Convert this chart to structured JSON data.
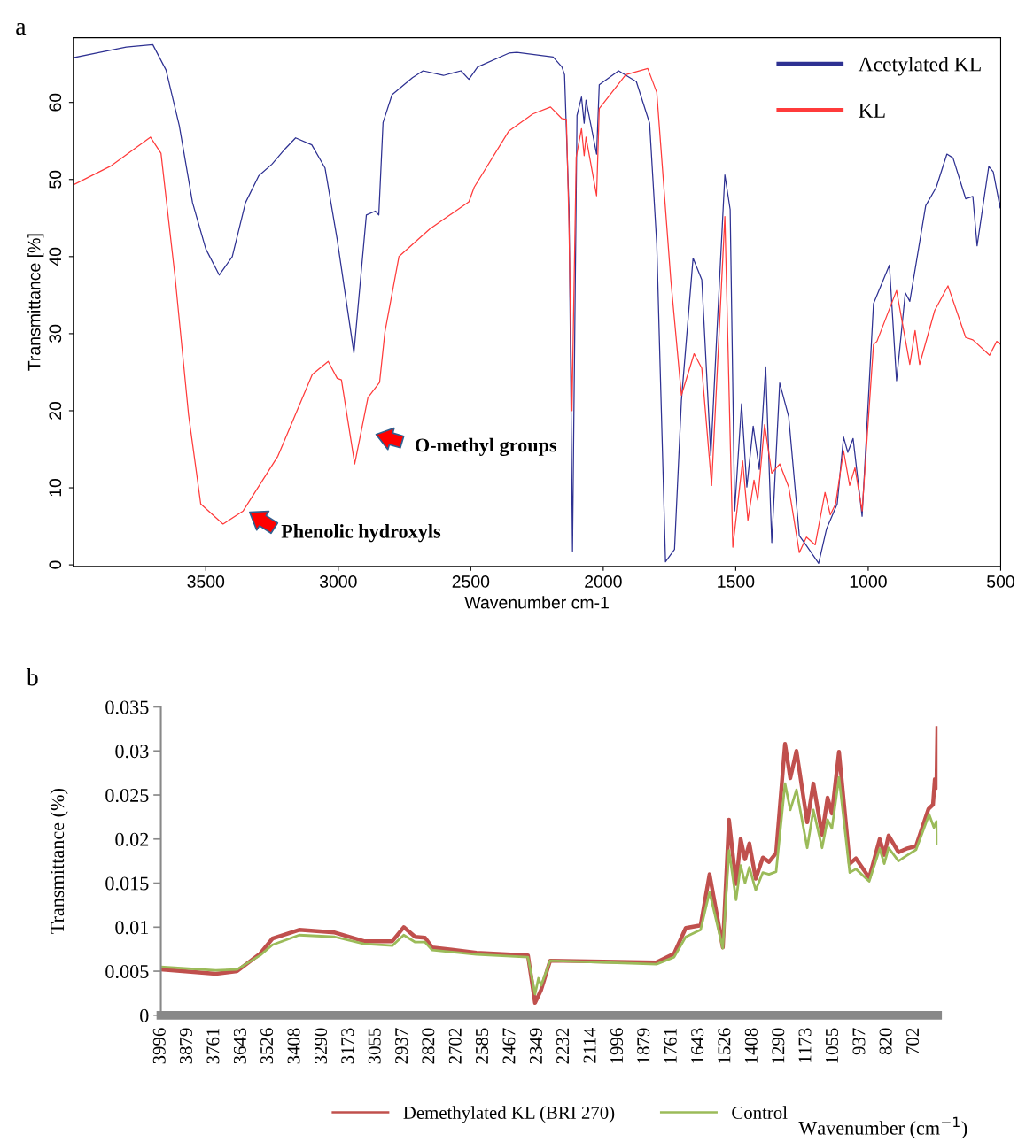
{
  "chart_data": [
    {
      "type": "line",
      "title": "a",
      "xlabel": "Wavenumber cm-1",
      "ylabel": "Transmittance [%]",
      "xlim": [
        4000,
        500
      ],
      "xticks": [
        3500,
        3000,
        2500,
        2000,
        1500,
        1000,
        500
      ],
      "ylim": [
        -0.2,
        68.4
      ],
      "yticks": [
        0,
        10,
        20,
        30,
        40,
        50,
        60
      ],
      "grid": false,
      "legend": "top right",
      "line_style": "solid",
      "annotations": [
        "O-methyl groups",
        "Phenolic hydroxyls"
      ],
      "series": [
        {
          "name": "Acetylated KL",
          "color": "#2e3192",
          "x": [
            4000,
            3900,
            3800,
            3700,
            3650,
            3600,
            3550,
            3500,
            3449,
            3400,
            3350,
            3300,
            3250,
            3200,
            3161,
            3100,
            3050,
            3004,
            2941,
            2894,
            2860,
            2847,
            2831,
            2797,
            2720,
            2680,
            2603,
            2537,
            2507,
            2474,
            2356,
            2326,
            2189,
            2156,
            2146,
            2129,
            2116,
            2099,
            2082,
            2072,
            2065,
            2025,
            2015,
            1942,
            1875,
            1825,
            1798,
            1765,
            1731,
            1705,
            1661,
            1628,
            1594,
            1574,
            1541,
            1521,
            1504,
            1478,
            1458,
            1434,
            1411,
            1387,
            1364,
            1334,
            1300,
            1260,
            1233,
            1187,
            1157,
            1117,
            1093,
            1077,
            1057,
            1023,
            980,
            920,
            893,
            860,
            843,
            783,
            743,
            703,
            680,
            632,
            605,
            589,
            545,
            528,
            502,
            500
          ],
          "values": [
            65.8,
            66.5,
            67.2,
            67.5,
            64.2,
            57,
            47,
            41,
            37.6,
            40,
            47,
            50.5,
            52,
            54,
            55.4,
            54.5,
            51.5,
            42.2,
            27.5,
            45.4,
            45.9,
            45.4,
            57.4,
            61,
            63.2,
            64.1,
            63.5,
            64.1,
            63,
            64.6,
            66.4,
            66.5,
            65.9,
            64.6,
            63.6,
            46,
            1.8,
            58.3,
            60.7,
            57.3,
            60.3,
            53.3,
            62.3,
            64.1,
            62.7,
            57.3,
            41.6,
            0.4,
            2,
            21.3,
            39.8,
            37,
            14.2,
            28.1,
            50.6,
            46.1,
            7,
            20.9,
            10.1,
            18,
            12.4,
            25.7,
            2.9,
            23.6,
            19.2,
            3.8,
            2.5,
            0.2,
            4.7,
            7.9,
            16.6,
            14.6,
            16.4,
            6.3,
            33.9,
            38.9,
            23.9,
            35.3,
            34.2,
            46.6,
            49,
            53.3,
            52.8,
            47.5,
            47.8,
            41.4,
            51.7,
            51,
            46.3,
            48
          ]
        },
        {
          "name": "KL",
          "color": "#ff3b3b",
          "x": [
            4000,
            3856,
            3709,
            3669,
            3616,
            3565,
            3519,
            3435,
            3359,
            3228,
            3098,
            3038,
            3004,
            2988,
            2938,
            2888,
            2844,
            2824,
            2771,
            2654,
            2507,
            2487,
            2356,
            2266,
            2199,
            2156,
            2139,
            2129,
            2118,
            2102,
            2082,
            2072,
            2065,
            2025,
            2015,
            1915,
            1832,
            1798,
            1745,
            1705,
            1657,
            1628,
            1591,
            1541,
            1511,
            1474,
            1454,
            1431,
            1417,
            1391,
            1364,
            1334,
            1300,
            1260,
            1233,
            1200,
            1163,
            1143,
            1123,
            1093,
            1070,
            1050,
            1023,
            980,
            967,
            893,
            843,
            823,
            806,
            749,
            699,
            632,
            605,
            542,
            515,
            500
          ],
          "values": [
            49.3,
            51.8,
            55.5,
            53.4,
            37.4,
            19.5,
            7.9,
            5.3,
            7,
            14.1,
            24.7,
            26.4,
            24.2,
            24,
            13.1,
            21.7,
            23.7,
            30.2,
            40,
            43.6,
            47.1,
            49,
            56.3,
            58.5,
            59.4,
            57.9,
            57.8,
            43.8,
            20,
            52.9,
            56.6,
            53.1,
            55.5,
            47.9,
            59.2,
            63.6,
            64.4,
            61.3,
            37,
            22,
            27.4,
            25.5,
            10.3,
            45.2,
            2.3,
            13.5,
            5.8,
            11,
            8.4,
            18.2,
            11.9,
            13.1,
            10.1,
            1.6,
            3.6,
            2.6,
            9.4,
            6.5,
            7.9,
            14.8,
            10.3,
            12.6,
            7,
            28.6,
            29,
            35.6,
            26,
            30.4,
            26,
            33,
            36.2,
            29.5,
            29.2,
            27.2,
            29,
            28.6
          ]
        }
      ]
    },
    {
      "type": "line",
      "title": "b",
      "xlabel": "Wavenumber (cm$^{−1}$)",
      "ylabel": "Transmittance (%)",
      "xlim": [
        3996,
        600
      ],
      "xticks": [
        3996,
        3879,
        3761,
        3643,
        3526,
        3408,
        3290,
        3173,
        3055,
        2937,
        2820,
        2702,
        2585,
        2467,
        2349,
        2232,
        2114,
        1996,
        1879,
        1761,
        1643,
        1526,
        1408,
        1290,
        1173,
        1055,
        937,
        820,
        702
      ],
      "ylim": [
        0,
        0.035
      ],
      "yticks": [
        0,
        0.005,
        0.01,
        0.015,
        0.02,
        0.025,
        0.03,
        0.035
      ],
      "grid": false,
      "legend": "bottom",
      "line_style": "solid",
      "series": [
        {
          "name": "Demethylated KL (BRI 270)",
          "color": "#c0504d",
          "x": [
            3996,
            3756,
            3663,
            3562,
            3508,
            3391,
            3236,
            3108,
            2984,
            2934,
            2884,
            2841,
            2810,
            2616,
            2391,
            2360,
            2333,
            2294,
            1829,
            1752,
            1701,
            1636,
            1597,
            1539,
            1512,
            1481,
            1461,
            1442,
            1423,
            1395,
            1364,
            1337,
            1306,
            1267,
            1244,
            1217,
            1170,
            1143,
            1105,
            1081,
            1062,
            1031,
            984,
            957,
            899,
            853,
            833,
            814,
            771,
            736,
            694,
            640,
            620,
            612,
            605,
            601
          ],
          "values": [
            0.0052,
            0.0047,
            0.005,
            0.007,
            0.0087,
            0.0097,
            0.0094,
            0.0084,
            0.0084,
            0.01,
            0.0089,
            0.0088,
            0.0077,
            0.0071,
            0.0068,
            0.0014,
            0.0029,
            0.0062,
            0.006,
            0.007,
            0.0099,
            0.0102,
            0.016,
            0.0077,
            0.0222,
            0.0149,
            0.02,
            0.0177,
            0.0195,
            0.0155,
            0.0179,
            0.0174,
            0.0184,
            0.0308,
            0.0269,
            0.03,
            0.0219,
            0.0263,
            0.0205,
            0.0247,
            0.0229,
            0.0299,
            0.0172,
            0.0178,
            0.0156,
            0.02,
            0.0182,
            0.0204,
            0.0185,
            0.0189,
            0.0192,
            0.0234,
            0.0239,
            0.0268,
            0.0258,
            0.0326
          ]
        },
        {
          "name": "Control",
          "color": "#9bbb59",
          "x": [
            3996,
            3756,
            3663,
            3562,
            3508,
            3391,
            3236,
            3108,
            2984,
            2934,
            2884,
            2841,
            2810,
            2616,
            2391,
            2360,
            2345,
            2333,
            2294,
            1829,
            1752,
            1701,
            1636,
            1597,
            1539,
            1512,
            1481,
            1461,
            1442,
            1423,
            1395,
            1364,
            1337,
            1306,
            1267,
            1244,
            1217,
            1170,
            1143,
            1105,
            1081,
            1062,
            1031,
            984,
            957,
            899,
            853,
            833,
            814,
            771,
            736,
            694,
            637,
            616,
            605,
            601
          ],
          "values": [
            0.0055,
            0.0051,
            0.0052,
            0.0068,
            0.008,
            0.0091,
            0.0089,
            0.0081,
            0.0079,
            0.0091,
            0.0083,
            0.0083,
            0.0074,
            0.0069,
            0.0066,
            0.0024,
            0.0042,
            0.0034,
            0.0062,
            0.0058,
            0.0066,
            0.0089,
            0.0097,
            0.014,
            0.0076,
            0.0187,
            0.0131,
            0.017,
            0.015,
            0.0168,
            0.0142,
            0.0162,
            0.016,
            0.0163,
            0.0263,
            0.0233,
            0.0256,
            0.019,
            0.0233,
            0.019,
            0.0222,
            0.0212,
            0.027,
            0.0162,
            0.0166,
            0.0152,
            0.0189,
            0.0172,
            0.019,
            0.0175,
            0.0181,
            0.0188,
            0.0228,
            0.0213,
            0.022,
            0.0195
          ]
        }
      ]
    }
  ]
}
